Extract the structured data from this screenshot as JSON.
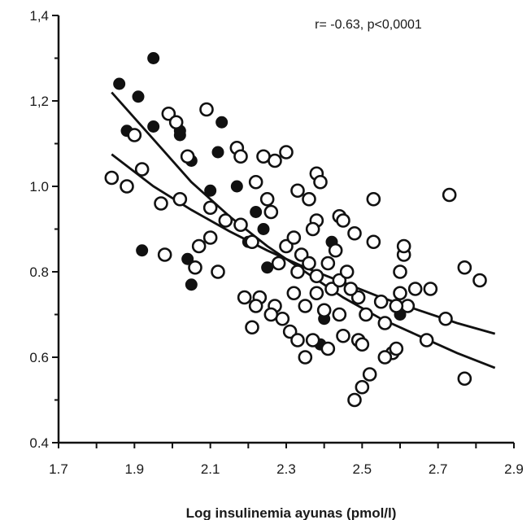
{
  "chart_data": {
    "type": "scatter",
    "xlabel": "Log insulinemia  ayunas (pmol/l)",
    "ylabel": "",
    "annotation": "r= -0.63, p<0,0001",
    "xlim": [
      1.7,
      2.9
    ],
    "ylim": [
      0.4,
      1.4
    ],
    "xticks": [
      1.7,
      1.9,
      2.1,
      2.3,
      2.5,
      2.7,
      2.9
    ],
    "yticks": [
      0.4,
      0.6,
      0.8,
      1.0,
      1.2,
      1.4
    ],
    "xtick_labels": [
      "1.7",
      "1.9",
      "2.1",
      "2.3",
      "2.5",
      "2.7",
      "2.9"
    ],
    "ytick_labels": [
      "0.4",
      "0.6",
      "0.8",
      "1.0",
      "1,2",
      "1,4"
    ],
    "grid": false,
    "series": [
      {
        "marker": "filled-circle",
        "color": "#111111",
        "points": [
          [
            1.86,
            1.24
          ],
          [
            1.95,
            1.3
          ],
          [
            1.88,
            1.13
          ],
          [
            1.91,
            1.21
          ],
          [
            1.95,
            1.14
          ],
          [
            2.02,
            1.12
          ],
          [
            2.02,
            1.13
          ],
          [
            2.13,
            1.15
          ],
          [
            2.05,
            1.06
          ],
          [
            2.12,
            1.08
          ],
          [
            1.92,
            0.85
          ],
          [
            2.05,
            0.77
          ],
          [
            2.04,
            0.83
          ],
          [
            2.1,
            0.99
          ],
          [
            2.17,
            1.0
          ],
          [
            2.22,
            0.94
          ],
          [
            2.2,
            0.87
          ],
          [
            2.24,
            0.9
          ],
          [
            2.25,
            0.81
          ],
          [
            2.39,
            0.63
          ],
          [
            2.4,
            0.69
          ],
          [
            2.42,
            0.87
          ],
          [
            2.6,
            0.7
          ]
        ]
      },
      {
        "marker": "open-circle",
        "color": "#111111",
        "points": [
          [
            1.84,
            1.02
          ],
          [
            1.88,
            1.0
          ],
          [
            1.92,
            1.04
          ],
          [
            1.9,
            1.12
          ],
          [
            1.99,
            1.17
          ],
          [
            2.01,
            1.15
          ],
          [
            2.04,
            1.07
          ],
          [
            2.09,
            1.18
          ],
          [
            1.97,
            0.96
          ],
          [
            2.02,
            0.97
          ],
          [
            1.98,
            0.84
          ],
          [
            2.07,
            0.86
          ],
          [
            2.1,
            0.88
          ],
          [
            2.06,
            0.81
          ],
          [
            2.12,
            0.8
          ],
          [
            2.1,
            0.95
          ],
          [
            2.14,
            0.92
          ],
          [
            2.18,
            0.91
          ],
          [
            2.17,
            1.09
          ],
          [
            2.18,
            1.07
          ],
          [
            2.22,
            1.01
          ],
          [
            2.24,
            1.07
          ],
          [
            2.27,
            1.06
          ],
          [
            2.3,
            1.08
          ],
          [
            2.25,
            0.97
          ],
          [
            2.26,
            0.94
          ],
          [
            2.21,
            0.87
          ],
          [
            2.23,
            0.74
          ],
          [
            2.19,
            0.74
          ],
          [
            2.21,
            0.67
          ],
          [
            2.27,
            0.72
          ],
          [
            2.29,
            0.69
          ],
          [
            2.31,
            0.66
          ],
          [
            2.33,
            0.64
          ],
          [
            2.37,
            0.64
          ],
          [
            2.41,
            0.62
          ],
          [
            2.3,
            0.86
          ],
          [
            2.32,
            0.88
          ],
          [
            2.34,
            0.84
          ],
          [
            2.36,
            0.82
          ],
          [
            2.38,
            0.79
          ],
          [
            2.33,
            0.8
          ],
          [
            2.28,
            0.82
          ],
          [
            2.35,
            0.72
          ],
          [
            2.38,
            0.75
          ],
          [
            2.4,
            0.71
          ],
          [
            2.42,
            0.76
          ],
          [
            2.44,
            0.78
          ],
          [
            2.46,
            0.8
          ],
          [
            2.41,
            0.82
          ],
          [
            2.43,
            0.85
          ],
          [
            2.38,
            0.92
          ],
          [
            2.36,
            0.97
          ],
          [
            2.38,
            1.03
          ],
          [
            2.39,
            1.01
          ],
          [
            2.33,
            0.99
          ],
          [
            2.37,
            0.9
          ],
          [
            2.44,
            0.93
          ],
          [
            2.45,
            0.92
          ],
          [
            2.48,
            0.89
          ],
          [
            2.53,
            0.87
          ],
          [
            2.53,
            0.97
          ],
          [
            2.49,
            0.74
          ],
          [
            2.51,
            0.7
          ],
          [
            2.47,
            0.76
          ],
          [
            2.44,
            0.7
          ],
          [
            2.49,
            0.64
          ],
          [
            2.5,
            0.63
          ],
          [
            2.52,
            0.56
          ],
          [
            2.5,
            0.53
          ],
          [
            2.48,
            0.5
          ],
          [
            2.55,
            0.73
          ],
          [
            2.6,
            0.75
          ],
          [
            2.62,
            0.72
          ],
          [
            2.64,
            0.76
          ],
          [
            2.68,
            0.76
          ],
          [
            2.58,
            0.61
          ],
          [
            2.59,
            0.62
          ],
          [
            2.6,
            0.8
          ],
          [
            2.61,
            0.84
          ],
          [
            2.61,
            0.86
          ],
          [
            2.59,
            0.72
          ],
          [
            2.56,
            0.68
          ],
          [
            2.67,
            0.64
          ],
          [
            2.72,
            0.69
          ],
          [
            2.73,
            0.98
          ],
          [
            2.77,
            0.81
          ],
          [
            2.81,
            0.78
          ],
          [
            2.77,
            0.55
          ],
          [
            2.22,
            0.72
          ],
          [
            2.26,
            0.7
          ],
          [
            2.32,
            0.75
          ],
          [
            2.56,
            0.6
          ],
          [
            2.35,
            0.6
          ],
          [
            2.45,
            0.65
          ]
        ]
      }
    ],
    "fit_curves": [
      {
        "points": [
          [
            1.84,
            1.22
          ],
          [
            1.95,
            1.11
          ],
          [
            2.05,
            1.01
          ],
          [
            2.15,
            0.93
          ],
          [
            2.25,
            0.86
          ],
          [
            2.35,
            0.8
          ],
          [
            2.45,
            0.74
          ],
          [
            2.55,
            0.69
          ],
          [
            2.65,
            0.65
          ],
          [
            2.75,
            0.61
          ],
          [
            2.85,
            0.575
          ]
        ]
      },
      {
        "points": [
          [
            1.84,
            1.075
          ],
          [
            1.95,
            1.0
          ],
          [
            2.05,
            0.945
          ],
          [
            2.15,
            0.895
          ],
          [
            2.25,
            0.85
          ],
          [
            2.35,
            0.81
          ],
          [
            2.45,
            0.775
          ],
          [
            2.55,
            0.74
          ],
          [
            2.65,
            0.71
          ],
          [
            2.75,
            0.68
          ],
          [
            2.85,
            0.655
          ]
        ]
      }
    ]
  }
}
